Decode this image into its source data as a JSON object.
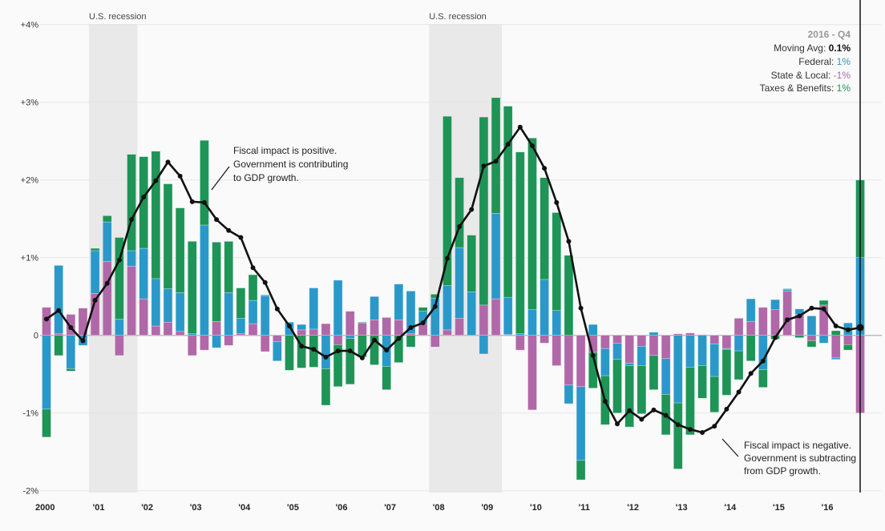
{
  "chart_data": {
    "type": "bar",
    "stacked": true,
    "ylim": [
      -2,
      4
    ],
    "yticks": [
      4,
      3,
      2,
      1,
      0,
      -1,
      -2
    ],
    "ytick_labels": [
      "+4%",
      "+3%",
      "+2%",
      "+1%",
      "0",
      "-1%",
      "-2%"
    ],
    "xtick_labels": [
      "2000",
      "'01",
      "'02",
      "'03",
      "'04",
      "'05",
      "'06",
      "'07",
      "'08",
      "'09",
      "'10",
      "'11",
      "'12",
      "'13",
      "'14",
      "'15",
      "'16"
    ],
    "x_start": "2000 Q1",
    "x_end": "2016 Q4",
    "grid": true,
    "colors": {
      "federal": "#2a99c9",
      "state_local": "#b068a8",
      "taxes_benefits": "#1e9457",
      "moving_avg": "#111111",
      "recession": "#e9e9e9"
    },
    "recessions": [
      {
        "label": "U.S. recession",
        "start": "2001 Q1",
        "end": "2001 Q4"
      },
      {
        "label": "U.S. recession",
        "start": "2008 Q1",
        "end": "2009 Q2"
      }
    ],
    "series": [
      {
        "name": "Federal",
        "values": [
          -0.95,
          0.88,
          -0.43,
          -0.13,
          0.55,
          0.51,
          0.21,
          0.2,
          0.65,
          0.61,
          0.43,
          0.5,
          0.02,
          1.42,
          -0.16,
          0.55,
          0.2,
          0.3,
          0.51,
          -0.25,
          0.17,
          0.07,
          0.53,
          -0.43,
          0.71,
          -0.04,
          0.01,
          0.3,
          -0.4,
          0.46,
          0.55,
          0.16,
          0.48,
          0.57,
          0.91,
          0.56,
          -0.24,
          1.1,
          0.48,
          0.02,
          0.33,
          0.72,
          0.32,
          -0.24,
          -0.95,
          0.14,
          -0.35,
          -0.21,
          -0.03,
          -0.25,
          0.04,
          -0.46,
          -0.87,
          -0.41,
          -0.39,
          -0.42,
          -0.01,
          -0.2,
          0.29,
          -0.44,
          0.13,
          0.02,
          0.07,
          0.25,
          -0.1,
          -0.02,
          0.16,
          1.0
        ]
      },
      {
        "name": "State & Local",
        "values": [
          0.36,
          0.02,
          0.27,
          0.35,
          0.54,
          0.95,
          -0.26,
          0.89,
          0.47,
          0.12,
          0.17,
          0.05,
          -0.26,
          -0.19,
          0.18,
          -0.13,
          0.02,
          0.15,
          -0.21,
          -0.08,
          0,
          0.07,
          0.08,
          0.15,
          -0.12,
          0.31,
          0.16,
          0.2,
          0.23,
          0.2,
          0.02,
          0.15,
          -0.15,
          0.07,
          0.22,
          0,
          0.39,
          0.47,
          0.01,
          -0.19,
          -0.96,
          -0.1,
          -0.39,
          -0.64,
          -0.66,
          -0.22,
          -0.17,
          -0.1,
          -0.36,
          -0.14,
          -0.26,
          -0.3,
          0.02,
          0.03,
          0.01,
          -0.11,
          -0.17,
          0.22,
          0.18,
          0.36,
          0.33,
          0.57,
          0.27,
          -0.07,
          0.39,
          -0.29,
          -0.12,
          -1.0
        ]
      },
      {
        "name": "Taxes & Benefits",
        "values": [
          -0.36,
          -0.26,
          -0.03,
          0,
          0.03,
          0.08,
          1.05,
          1.24,
          1.18,
          1.64,
          1.35,
          1.09,
          1.19,
          1.09,
          1.02,
          0.66,
          0.39,
          0.33,
          0.01,
          0,
          -0.45,
          -0.42,
          -0.41,
          -0.47,
          -0.54,
          -0.59,
          -0.28,
          -0.38,
          -0.3,
          -0.35,
          -0.15,
          0.05,
          0.05,
          2.18,
          0.9,
          0.73,
          2.42,
          1.49,
          2.46,
          2.34,
          2.21,
          1.31,
          1.26,
          1.03,
          -0.25,
          -0.46,
          -0.63,
          -0.69,
          -0.79,
          -0.62,
          -0.44,
          -0.52,
          -0.85,
          -0.87,
          -0.42,
          -0.46,
          -0.59,
          -0.37,
          -0.33,
          -0.23,
          -0.05,
          0.01,
          -0.03,
          -0.08,
          0.06,
          0.06,
          -0.07,
          1.0
        ]
      },
      {
        "name": "Moving Avg",
        "type": "line",
        "values": [
          0.21,
          0.32,
          0.1,
          -0.07,
          0.45,
          0.67,
          0.97,
          1.49,
          1.78,
          1.99,
          2.23,
          2.05,
          1.72,
          1.71,
          1.49,
          1.35,
          1.26,
          0.87,
          0.68,
          0.34,
          0.12,
          -0.14,
          -0.18,
          -0.28,
          -0.2,
          -0.2,
          -0.29,
          -0.06,
          -0.19,
          -0.04,
          0.1,
          0.16,
          0.37,
          0.99,
          1.4,
          1.62,
          2.18,
          2.24,
          2.46,
          2.68,
          2.44,
          2.15,
          1.71,
          1.21,
          0.35,
          -0.26,
          -0.85,
          -1.14,
          -0.97,
          -1.08,
          -0.96,
          -1.03,
          -1.15,
          -1.21,
          -1.25,
          -1.17,
          -0.95,
          -0.73,
          -0.49,
          -0.33,
          -0.03,
          0.2,
          0.25,
          0.35,
          0.34,
          0.12,
          0.07,
          0.1
        ]
      }
    ],
    "annotations": {
      "positive": [
        "Fiscal impact is positive.",
        "Government is contributing",
        "to GDP growth."
      ],
      "negative": [
        "Fiscal impact is negative.",
        "Government is subtracting",
        "from GDP growth."
      ]
    },
    "tooltip": {
      "title": "2016 - Q4",
      "moving_avg_label": "Moving Avg: ",
      "moving_avg_value": "0.1%",
      "federal_label": "Federal: ",
      "federal_value": "1%",
      "state_label": "State & Local: ",
      "state_value": "-1%",
      "taxes_label": "Taxes & Benefits: ",
      "taxes_value": "1%"
    }
  }
}
